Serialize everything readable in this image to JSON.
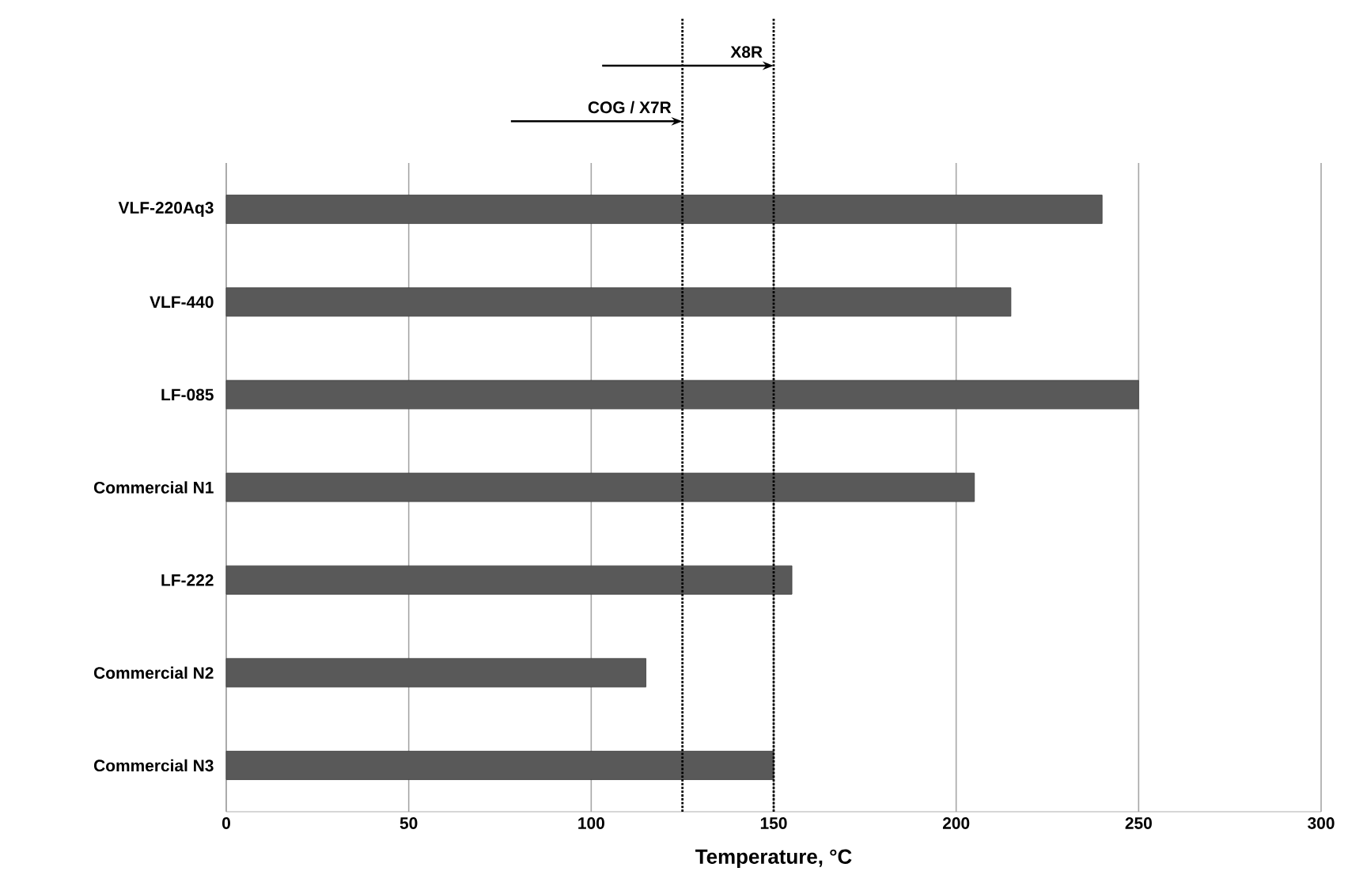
{
  "chart_data": {
    "type": "bar",
    "orientation": "horizontal",
    "xlabel": "Temperature, °C",
    "categories": [
      "VLF-220Aq3",
      "VLF-440",
      "LF-085",
      "Commercial N1",
      "LF-222",
      "Commercial N2",
      "Commercial N3"
    ],
    "values": [
      240,
      215,
      250,
      205,
      155,
      115,
      150
    ],
    "color": "#595959",
    "xlim": [
      0,
      300
    ],
    "xticks": [
      0,
      50,
      100,
      150,
      200,
      250,
      300
    ],
    "grid": "x",
    "ref_lines": [
      {
        "axis": "x",
        "value": 125,
        "label": "COG / X7R",
        "color": "#000000",
        "line_style": "dotted"
      },
      {
        "axis": "x",
        "value": 150,
        "label": "X8R",
        "color": "#000000",
        "line_style": "dotted"
      }
    ]
  }
}
